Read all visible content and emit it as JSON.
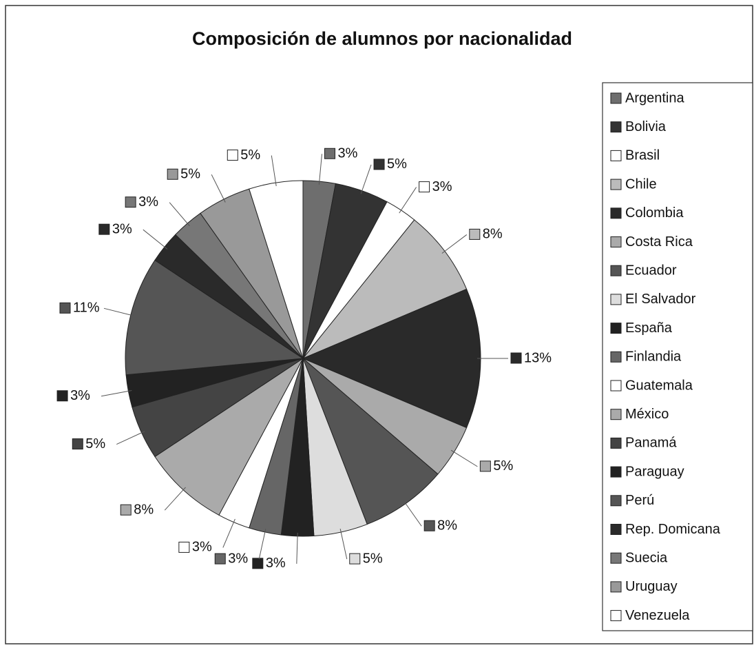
{
  "chart_data": {
    "type": "pie",
    "title": "Composición de alumnos por nacionalidad",
    "categories": [
      "Argentina",
      "Bolivia",
      "Brasil",
      "Chile",
      "Colombia",
      "Costa Rica",
      "Ecuador",
      "El Salvador",
      "España",
      "Finlandia",
      "Guatemala",
      "México",
      "Panamá",
      "Paraguay",
      "Perú",
      "Rep. Domicana",
      "Suecia",
      "Uruguay",
      "Venezuela"
    ],
    "values": [
      3,
      5,
      3,
      8,
      13,
      5,
      8,
      5,
      3,
      3,
      3,
      8,
      5,
      3,
      11,
      3,
      3,
      5,
      5
    ],
    "value_labels": [
      "3%",
      "5%",
      "3%",
      "8%",
      "13%",
      "5%",
      "8%",
      "5%",
      "3%",
      "3%",
      "3%",
      "8%",
      "5%",
      "3%",
      "11%",
      "3%",
      "3%",
      "5%",
      "5%"
    ],
    "colors": [
      "#6e6e6e",
      "#333333",
      "#ffffff",
      "#bbbbbb",
      "#2a2a2a",
      "#aaaaaa",
      "#555555",
      "#dddddd",
      "#222222",
      "#666666",
      "#ffffff",
      "#aaaaaa",
      "#444444",
      "#222222",
      "#555555",
      "#2a2a2a",
      "#777777",
      "#999999",
      "#ffffff"
    ],
    "legend": "right"
  }
}
